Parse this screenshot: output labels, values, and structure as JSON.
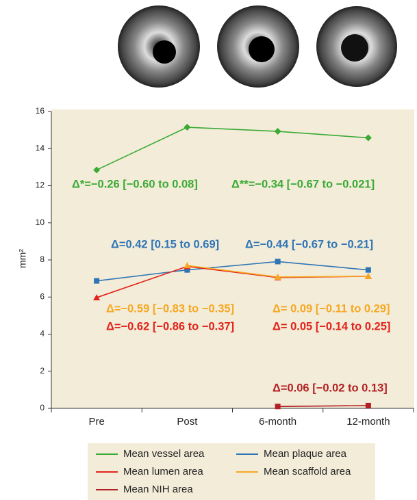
{
  "chart_data": {
    "type": "line",
    "categories": [
      "Pre",
      "Post",
      "6-month",
      "12-month"
    ],
    "y_label": "mm²",
    "ylim": [
      0,
      16
    ],
    "yticks": [
      0,
      2,
      4,
      6,
      8,
      10,
      12,
      14,
      16
    ],
    "background": "#f3ecd8",
    "series": [
      {
        "name": "Mean vessel area",
        "color": "#3aaa35",
        "marker": "diamond",
        "values": [
          12.85,
          15.15,
          14.93,
          14.58
        ]
      },
      {
        "name": "Mean plaque area",
        "color": "#2e75b6",
        "marker": "square",
        "values": [
          6.87,
          7.46,
          7.91,
          7.46
        ]
      },
      {
        "name": "Mean lumen area",
        "color": "#e2231a",
        "marker": "triangle",
        "values": [
          5.97,
          7.65,
          7.05,
          7.12
        ]
      },
      {
        "name": "Mean scaffold area",
        "color": "#f7a823",
        "marker": "triangle",
        "values": [
          null,
          7.7,
          7.08,
          7.12
        ]
      },
      {
        "name": "Mean NIH area",
        "color": "#b31f24",
        "marker": "square",
        "values": [
          null,
          null,
          0.1,
          0.15
        ]
      }
    ],
    "annotations": [
      {
        "text": "Δ*=−0.26 [−0.60 to 0.08]",
        "color": "#3aaa35"
      },
      {
        "text": "Δ**=−0.34 [−0.67 to −0.021]",
        "color": "#3aaa35"
      },
      {
        "text": "Δ=0.42 [0.15 to 0.69]",
        "color": "#2e75b6"
      },
      {
        "text": "Δ=−0.44 [−0.67 to −0.21]",
        "color": "#2e75b6"
      },
      {
        "text": "Δ=−0.59 [−0.83 to −0.35]",
        "color": "#f7a823"
      },
      {
        "text": "Δ= 0.09 [−0.11 to 0.29]",
        "color": "#f7a823"
      },
      {
        "text": "Δ=−0.62 [−0.86 to −0.37]",
        "color": "#e2231a"
      },
      {
        "text": "Δ= 0.05 [−0.14 to 0.25]",
        "color": "#e2231a"
      },
      {
        "text": "Δ=0.06 [−0.02 to 0.13]",
        "color": "#b31f24"
      }
    ]
  }
}
